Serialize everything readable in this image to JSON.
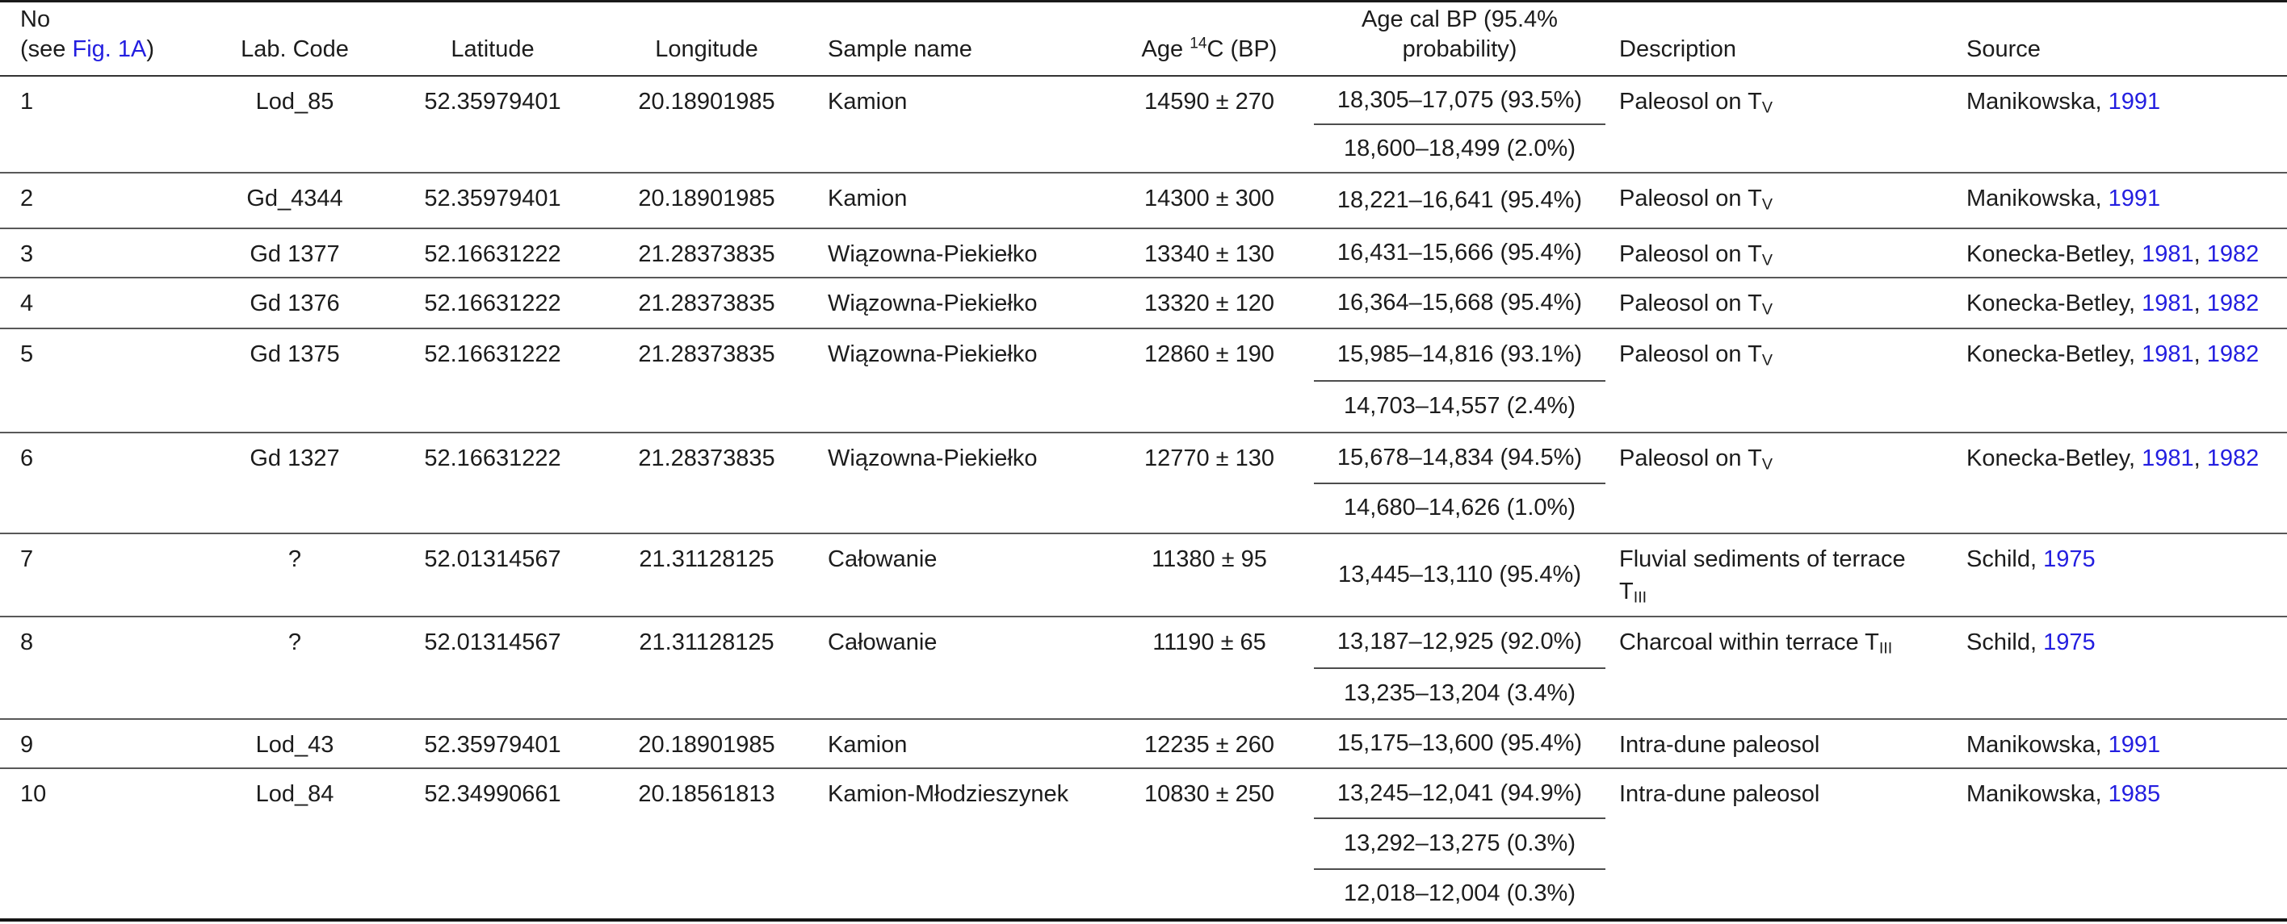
{
  "colors": {
    "link": "#231ee0",
    "text": "#1c1c1c"
  },
  "table": {
    "header": {
      "no_line1": "No",
      "no_line2_pre": "(see ",
      "no_link": "Fig. 1A",
      "no_line2_post": ")",
      "lab_code": "Lab. Code",
      "latitude": "Latitude",
      "longitude": "Longitude",
      "sample_name": "Sample name",
      "age_pre": "Age ",
      "age_sup": "14",
      "age_post": "C (BP)",
      "cal_line1": "Age cal BP (95.4%",
      "cal_line2": "probability)",
      "description": "Description",
      "source": "Source"
    },
    "rows": [
      {
        "no": "1",
        "lab": "Lod_85",
        "lat": "52.35979401",
        "lon": "20.18901985",
        "sample": "Kamion",
        "age": "14590 ± 270",
        "cal": [
          "18,305–17,075 (93.5%)",
          "18,600–18,499 (2.0%)"
        ],
        "desc_pre": "Paleosol on T",
        "desc_sub": "V",
        "src_author": "Manikowska, ",
        "src_year1": "1991",
        "src_sep": "",
        "src_year2": ""
      },
      {
        "no": "2",
        "lab": "Gd_4344",
        "lat": "52.35979401",
        "lon": "20.18901985",
        "sample": "Kamion",
        "age": "14300 ± 300",
        "cal": [
          "18,221–16,641 (95.4%)"
        ],
        "desc_pre": "Paleosol on T",
        "desc_sub": "V",
        "src_author": "Manikowska, ",
        "src_year1": "1991",
        "src_sep": "",
        "src_year2": ""
      },
      {
        "no": "3",
        "lab": "Gd 1377",
        "lat": "52.16631222",
        "lon": "21.28373835",
        "sample": "Wiązowna-Piekiełko",
        "age": "13340 ± 130",
        "cal": [
          "16,431–15,666 (95.4%)"
        ],
        "desc_pre": "Paleosol on T",
        "desc_sub": "V",
        "src_author": "Konecka-Betley, ",
        "src_year1": "1981",
        "src_sep": ", ",
        "src_year2": "1982"
      },
      {
        "no": "4",
        "lab": "Gd 1376",
        "lat": "52.16631222",
        "lon": "21.28373835",
        "sample": "Wiązowna-Piekiełko",
        "age": "13320 ± 120",
        "cal": [
          "16,364–15,668 (95.4%)"
        ],
        "desc_pre": "Paleosol on T",
        "desc_sub": "V",
        "src_author": "Konecka-Betley, ",
        "src_year1": "1981",
        "src_sep": ", ",
        "src_year2": "1982"
      },
      {
        "no": "5",
        "lab": "Gd 1375",
        "lat": "52.16631222",
        "lon": "21.28373835",
        "sample": "Wiązowna-Piekiełko",
        "age": "12860 ± 190",
        "cal": [
          "15,985–14,816 (93.1%)",
          "14,703–14,557 (2.4%)"
        ],
        "desc_pre": "Paleosol on T",
        "desc_sub": "V",
        "src_author": "Konecka-Betley, ",
        "src_year1": "1981",
        "src_sep": ", ",
        "src_year2": "1982"
      },
      {
        "no": "6",
        "lab": "Gd 1327",
        "lat": "52.16631222",
        "lon": "21.28373835",
        "sample": "Wiązowna-Piekiełko",
        "age": "12770 ± 130",
        "cal": [
          "15,678–14,834 (94.5%)",
          "14,680–14,626 (1.0%)"
        ],
        "desc_pre": "Paleosol on T",
        "desc_sub": "V",
        "src_author": "Konecka-Betley, ",
        "src_year1": "1981",
        "src_sep": ", ",
        "src_year2": "1982"
      },
      {
        "no": "7",
        "lab": "?",
        "lat": "52.01314567",
        "lon": "21.31128125",
        "sample": "Całowanie",
        "age": "11380 ± 95",
        "cal": [
          "13,445–13,110 (95.4%)"
        ],
        "desc_pre": "Fluvial sediments of terrace T",
        "desc_sub": "III",
        "src_author": "Schild, ",
        "src_year1": "1975",
        "src_sep": "",
        "src_year2": ""
      },
      {
        "no": "8",
        "lab": "?",
        "lat": "52.01314567",
        "lon": "21.31128125",
        "sample": "Całowanie",
        "age": "11190 ± 65",
        "cal": [
          "13,187–12,925 (92.0%)",
          "13,235–13,204 (3.4%)"
        ],
        "desc_pre": "Charcoal within terrace T",
        "desc_sub": "III",
        "src_author": "Schild, ",
        "src_year1": "1975",
        "src_sep": "",
        "src_year2": ""
      },
      {
        "no": "9",
        "lab": "Lod_43",
        "lat": "52.35979401",
        "lon": "20.18901985",
        "sample": "Kamion",
        "age": "12235 ± 260",
        "cal": [
          "15,175–13,600 (95.4%)"
        ],
        "desc_pre": "Intra-dune paleosol",
        "desc_sub": "",
        "src_author": "Manikowska, ",
        "src_year1": "1991",
        "src_sep": "",
        "src_year2": ""
      },
      {
        "no": "10",
        "lab": "Lod_84",
        "lat": "52.34990661",
        "lon": "20.18561813",
        "sample": "Kamion-Młodzieszynek",
        "age": "10830 ± 250",
        "cal": [
          "13,245–12,041 (94.9%)",
          "13,292–13,275 (0.3%)",
          "12,018–12,004 (0.3%)"
        ],
        "desc_pre": "Intra-dune paleosol",
        "desc_sub": "",
        "src_author": "Manikowska, ",
        "src_year1": "1985",
        "src_sep": "",
        "src_year2": ""
      }
    ]
  }
}
